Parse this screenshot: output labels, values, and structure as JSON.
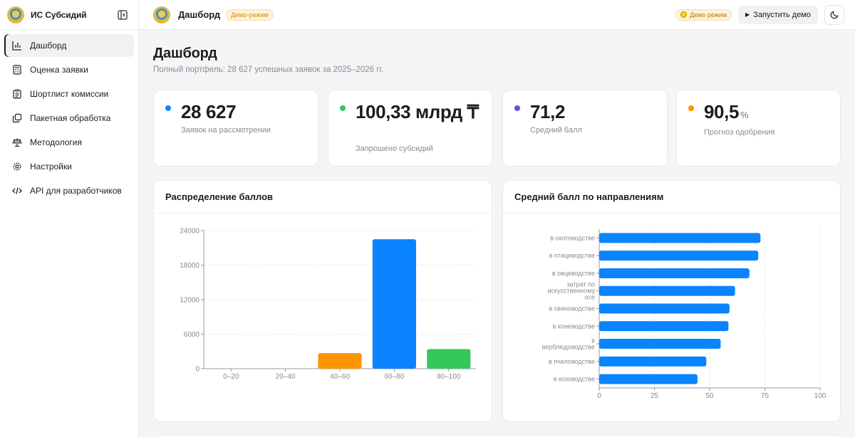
{
  "app": {
    "title": "ИС Субсидий"
  },
  "sidebar": {
    "items": [
      {
        "label": "Дашборд",
        "icon": "bar-chart-icon",
        "active": true
      },
      {
        "label": "Оценка заявки",
        "icon": "calculator-icon"
      },
      {
        "label": "Шортлист комиссии",
        "icon": "clipboard-list-icon"
      },
      {
        "label": "Пакетная обработка",
        "icon": "copy-icon"
      },
      {
        "label": "Методология",
        "icon": "scales-icon"
      },
      {
        "label": "Настройки",
        "icon": "gear-icon"
      },
      {
        "label": "API для разработчиков",
        "icon": "code-icon"
      }
    ]
  },
  "header": {
    "title": "Дашборд",
    "badge": "Демо-режим",
    "demo_pill": "Демо режим",
    "run_label": "Запустить демо"
  },
  "page": {
    "title": "Дашборд",
    "subtitle": "Полный портфель: 28 627 успешных заявок за 2025–2026 гг."
  },
  "kpis": [
    {
      "value": "28 627",
      "unit": "",
      "label": "Заявок на рассмотрении",
      "color": "#0a84ff"
    },
    {
      "value": "100,33 млрд ₸",
      "unit": "",
      "label": "Запрошено субсидий",
      "color": "#34c759"
    },
    {
      "value": "71,2",
      "unit": "",
      "label": "Средний балл",
      "color": "#5856d6"
    },
    {
      "value": "90,5",
      "unit": "%",
      "label": "Прогноз одобрения",
      "color": "#ff9500"
    }
  ],
  "charts": {
    "distribution_title": "Распределение баллов",
    "direction_title": "Средний балл по направлениям"
  },
  "chart_data": [
    {
      "type": "bar",
      "title": "Распределение баллов",
      "categories": [
        "0–20",
        "20–40",
        "40–60",
        "60–80",
        "80–100"
      ],
      "values": [
        0,
        0,
        2700,
        22500,
        3400
      ],
      "colors": [
        "#ff9500",
        "#ff9500",
        "#ff9500",
        "#0a84ff",
        "#34c759"
      ],
      "yticks": [
        0,
        6000,
        12000,
        18000,
        24000
      ],
      "ylim": [
        0,
        24000
      ],
      "grid": true
    },
    {
      "type": "bar",
      "orientation": "horizontal",
      "title": "Средний балл по направлениям",
      "categories": [
        "в скотоводстве",
        "в птицеводстве",
        "в овцеводстве",
        "затрат по искусственному осе",
        "в свиноводстве",
        "в коневодстве",
        "в верблюдоводстве",
        "в пчеловодстве",
        "в козоводстве"
      ],
      "category_lines": [
        [
          "в скотоводстве"
        ],
        [
          "в птицеводстве"
        ],
        [
          "в овцеводстве"
        ],
        [
          "затрат по",
          "искусственному",
          "осе"
        ],
        [
          "в свиноводстве"
        ],
        [
          "в коневодстве"
        ],
        [
          "в",
          "верблюдоводстве"
        ],
        [
          "в пчеловодстве"
        ],
        [
          "в козоводстве"
        ]
      ],
      "values": [
        73,
        72,
        68,
        61.5,
        59,
        58.5,
        55,
        48.5,
        44.5
      ],
      "color": "#0a84ff",
      "xticks": [
        0,
        25,
        50,
        75,
        100
      ],
      "xlim": [
        0,
        100
      ],
      "grid": true
    }
  ]
}
